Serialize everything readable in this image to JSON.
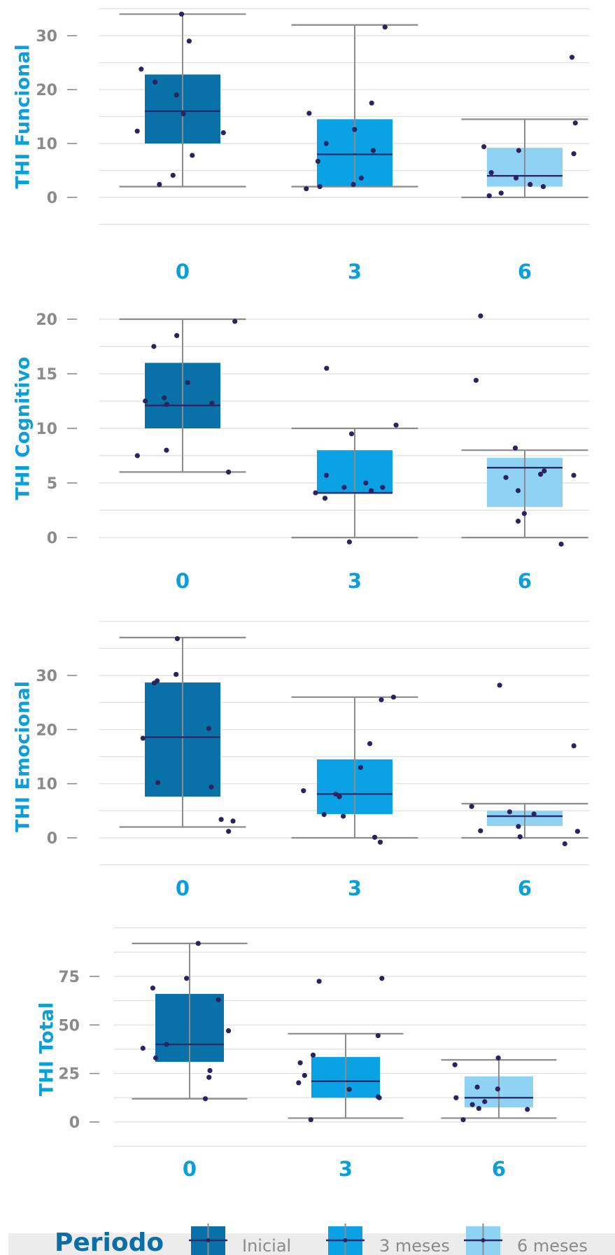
{
  "colors": {
    "inicial": "#0872a8",
    "tres_meses": "#0aa2e4",
    "seis_meses": "#8fd2f4",
    "median": "#2a2a6a",
    "points": "#2b2360",
    "whisker": "#8c8c8c",
    "grid": "#dedede",
    "label": "#0b9fda",
    "tick": "#8a8a8a",
    "legend_title": "#0a6fa8",
    "legend_bg": "#ececec"
  },
  "legend": {
    "title": "Periodo",
    "items": [
      "Inicial",
      "3 meses",
      "6 meses"
    ]
  },
  "chart_data": [
    {
      "type": "box",
      "ylabel": "THI Funcional",
      "categories": [
        "0",
        "3",
        "6"
      ],
      "yticks": [
        0,
        10,
        20,
        30
      ],
      "ylim": [
        -10.5,
        35
      ],
      "boxes": [
        {
          "category": "0",
          "whisker_low": 2,
          "q1": 10,
          "median": 16,
          "q3": 22.8,
          "whisker_high": 34,
          "points": [
            34,
            29,
            23.8,
            21.4,
            19,
            15.5,
            12.3,
            12,
            7.8,
            4.1,
            2.4
          ]
        },
        {
          "category": "3",
          "whisker_low": 2,
          "q1": 2,
          "median": 8,
          "q3": 14.5,
          "whisker_high": 32,
          "points": [
            31.6,
            17.5,
            15.6,
            12.6,
            10,
            8.7,
            6.7,
            3.6,
            2.4,
            2,
            1.6
          ]
        },
        {
          "category": "6",
          "whisker_low": 0,
          "q1": 2,
          "median": 4,
          "q3": 9.2,
          "whisker_high": 14.5,
          "points": [
            26,
            13.8,
            9.4,
            8.7,
            8.1,
            4.6,
            3.6,
            2.4,
            2,
            0.8,
            0.3
          ]
        }
      ]
    },
    {
      "type": "box",
      "ylabel": "THI Cognitivo",
      "categories": [
        "0",
        "3",
        "6"
      ],
      "yticks": [
        0,
        5,
        10,
        15,
        20
      ],
      "ylim": [
        -2.5,
        22
      ],
      "boxes": [
        {
          "category": "0",
          "whisker_low": 6,
          "q1": 10,
          "median": 12.1,
          "q3": 16,
          "whisker_high": 20,
          "points": [
            19.8,
            18.5,
            17.5,
            14.2,
            12.8,
            12.5,
            12.3,
            12.2,
            8,
            7.5,
            6
          ]
        },
        {
          "category": "3",
          "whisker_low": 0,
          "q1": 4,
          "median": 4.1,
          "q3": 8,
          "whisker_high": 10,
          "points": [
            15.5,
            10.3,
            9.5,
            5.7,
            5,
            4.6,
            4.6,
            4.3,
            4.1,
            3.6,
            -0.4
          ]
        },
        {
          "category": "6",
          "whisker_low": 0,
          "q1": 2.8,
          "median": 6.4,
          "q3": 7.3,
          "whisker_high": 8,
          "points": [
            20.3,
            14.4,
            8.2,
            6.1,
            5.8,
            5.7,
            5.5,
            4.3,
            2.2,
            1.5,
            -0.6
          ]
        }
      ]
    },
    {
      "type": "box",
      "ylabel": "THI Emocional",
      "categories": [
        "0",
        "3",
        "6"
      ],
      "yticks": [
        0,
        10,
        20,
        30
      ],
      "ylim": [
        -5,
        40
      ],
      "boxes": [
        {
          "category": "0",
          "whisker_low": 2,
          "q1": 7.6,
          "median": 18.6,
          "q3": 28.7,
          "whisker_high": 37,
          "points": [
            36.8,
            30.2,
            29,
            28.6,
            20.2,
            18.4,
            10.2,
            9.4,
            3.4,
            3.1,
            1.2
          ]
        },
        {
          "category": "3",
          "whisker_low": 0,
          "q1": 4.4,
          "median": 8.1,
          "q3": 14.5,
          "whisker_high": 26,
          "points": [
            26,
            25.5,
            17.4,
            13,
            8.7,
            8.1,
            7.6,
            4.3,
            4,
            0.1,
            -0.8
          ]
        },
        {
          "category": "6",
          "whisker_low": 0,
          "q1": 2.2,
          "median": 4,
          "q3": 5,
          "whisker_high": 6.3,
          "points": [
            28.2,
            17,
            5.8,
            4.8,
            4.4,
            2.1,
            1.3,
            1.2,
            0.2,
            -1.1
          ]
        }
      ]
    },
    {
      "type": "box",
      "ylabel": "THI Total",
      "categories": [
        "0",
        "3",
        "6"
      ],
      "yticks": [
        0,
        25,
        50,
        75
      ],
      "ylim": [
        -13,
        100
      ],
      "boxes": [
        {
          "category": "0",
          "whisker_low": 12,
          "q1": 31,
          "median": 40,
          "q3": 66,
          "whisker_high": 92,
          "points": [
            92,
            74,
            69,
            63,
            47,
            40,
            38,
            33,
            26.5,
            23,
            12
          ]
        },
        {
          "category": "3",
          "whisker_low": 2,
          "q1": 12.5,
          "median": 21,
          "q3": 33.5,
          "whisker_high": 45.5,
          "points": [
            74,
            72.5,
            44.5,
            34.5,
            30.5,
            24,
            20.2,
            16.8,
            13,
            12.5,
            1.2
          ]
        },
        {
          "category": "6",
          "whisker_low": 2,
          "q1": 7.5,
          "median": 12.5,
          "q3": 23.5,
          "whisker_high": 32,
          "points": [
            33,
            29.5,
            18,
            17,
            12.5,
            10.5,
            9,
            7,
            6.5,
            1.2
          ]
        }
      ]
    }
  ]
}
